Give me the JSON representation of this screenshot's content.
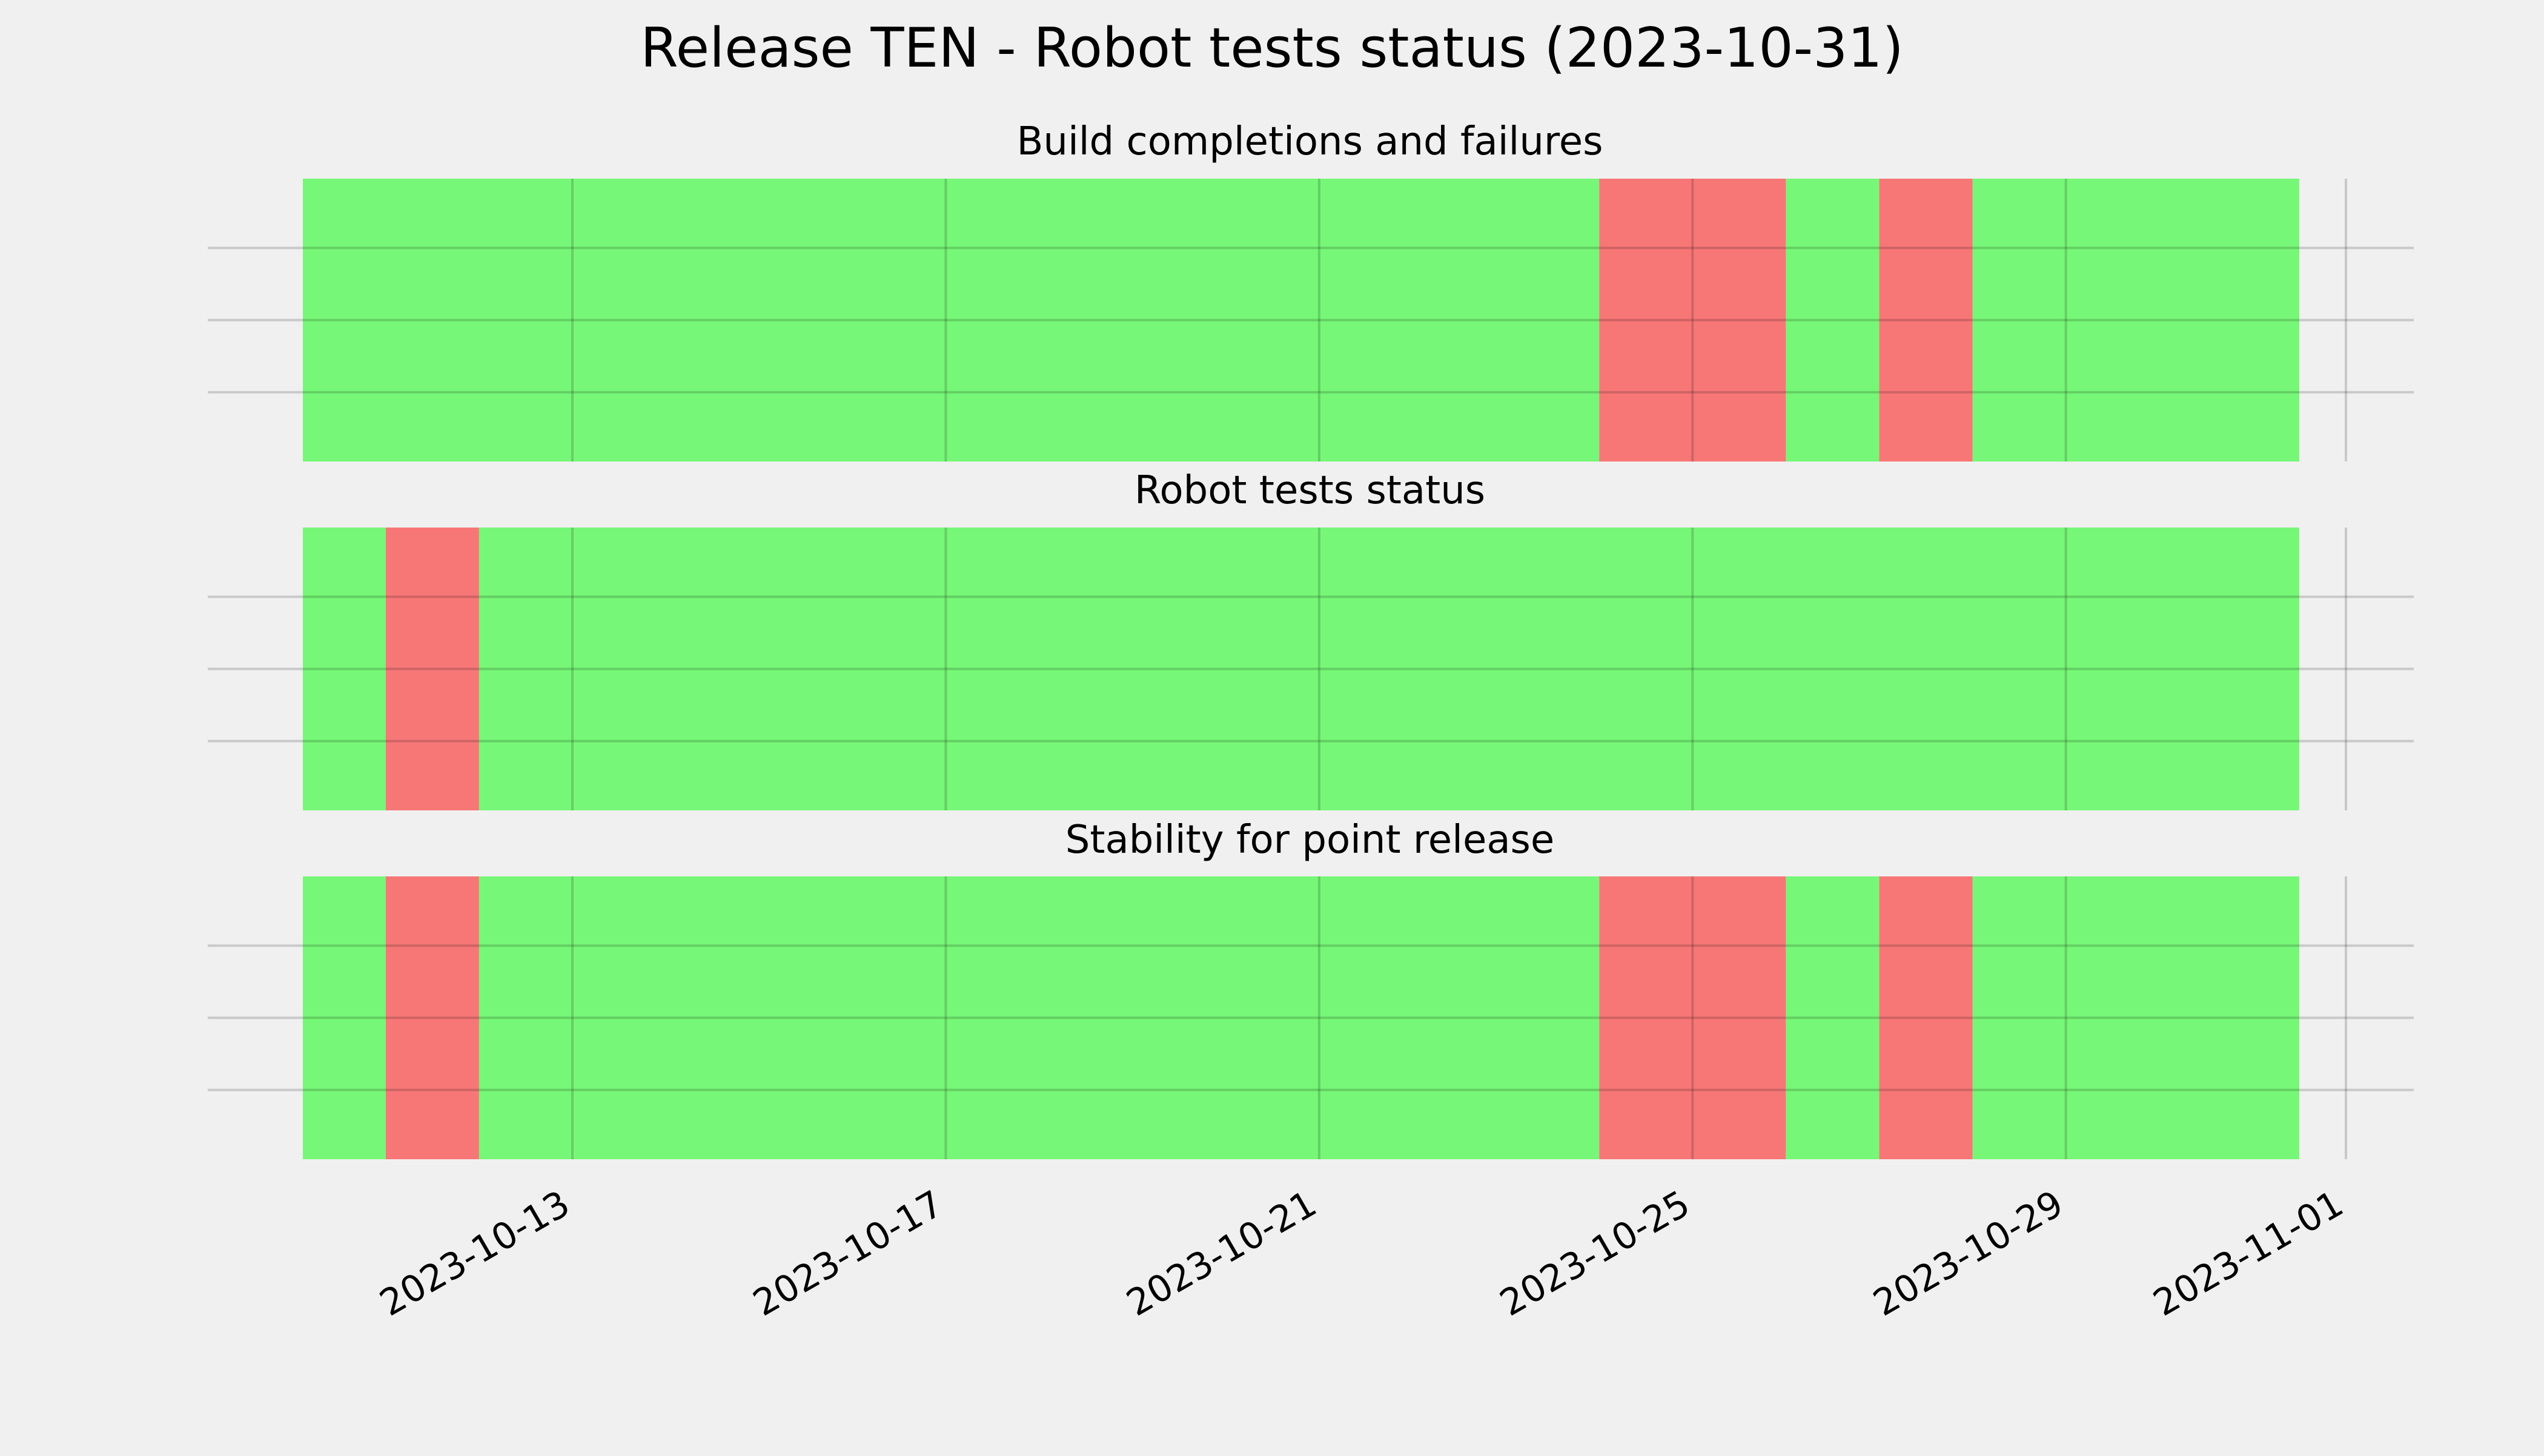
{
  "chart_data": {
    "type": "timeline",
    "title": "Release TEN - Robot tests status (2023-10-31)",
    "x_axis": {
      "type": "date",
      "ticks": [
        "2023-10-13",
        "2023-10-17",
        "2023-10-21",
        "2023-10-25",
        "2023-10-29",
        "2023-11-01"
      ],
      "range": [
        "2023-10-09",
        "2023-11-03"
      ]
    },
    "y_axis": {
      "visible_labels": false
    },
    "grid": true,
    "colors": {
      "pass": "#77f777",
      "fail": "#f77777",
      "background": "#f0f0f0",
      "grid": "#cbcbcb"
    },
    "panels": [
      {
        "title": "Build completions and failures",
        "segments": [
          {
            "start": "2023-10-10",
            "end": "2023-10-24T00:00",
            "status": "pass"
          },
          {
            "start": "2023-10-24T00:00",
            "end": "2023-10-26T00:00",
            "status": "fail"
          },
          {
            "start": "2023-10-26T00:00",
            "end": "2023-10-27T00:00",
            "status": "pass"
          },
          {
            "start": "2023-10-27T00:00",
            "end": "2023-10-28T00:00",
            "status": "fail"
          },
          {
            "start": "2023-10-28T00:00",
            "end": "2023-10-31T12:00",
            "status": "pass"
          }
        ]
      },
      {
        "title": "Robot tests status",
        "segments": [
          {
            "start": "2023-10-10",
            "end": "2023-10-11",
            "status": "pass"
          },
          {
            "start": "2023-10-11",
            "end": "2023-10-12",
            "status": "fail"
          },
          {
            "start": "2023-10-12",
            "end": "2023-10-31T12:00",
            "status": "pass"
          }
        ]
      },
      {
        "title": "Stability for point release",
        "segments": [
          {
            "start": "2023-10-10",
            "end": "2023-10-11",
            "status": "pass"
          },
          {
            "start": "2023-10-11",
            "end": "2023-10-12",
            "status": "fail"
          },
          {
            "start": "2023-10-12",
            "end": "2023-10-24T00:00",
            "status": "pass"
          },
          {
            "start": "2023-10-24T00:00",
            "end": "2023-10-26T00:00",
            "status": "fail"
          },
          {
            "start": "2023-10-26T00:00",
            "end": "2023-10-27T00:00",
            "status": "pass"
          },
          {
            "start": "2023-10-27T00:00",
            "end": "2023-10-28T00:00",
            "status": "fail"
          },
          {
            "start": "2023-10-28T00:00",
            "end": "2023-10-31T12:00",
            "status": "pass"
          }
        ]
      }
    ]
  }
}
